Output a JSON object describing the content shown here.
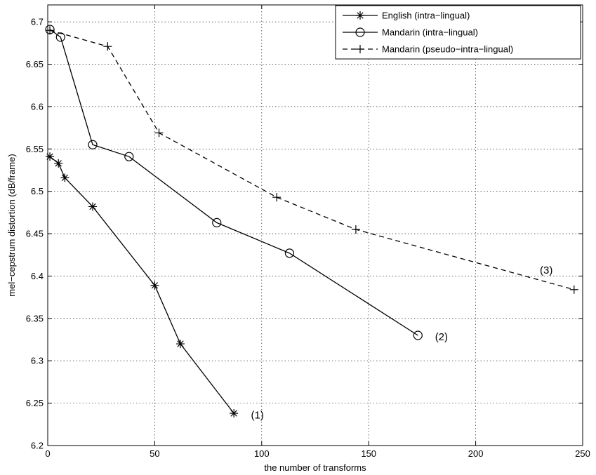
{
  "chart_data": {
    "type": "line",
    "title": "",
    "xlabel": "the number of transforms",
    "ylabel": "mel−cepstrum distortion (dB/frame)",
    "xlim": [
      0,
      250
    ],
    "ylim": [
      6.2,
      6.72
    ],
    "xticks": [
      0,
      50,
      100,
      150,
      200,
      250
    ],
    "yticks": [
      6.2,
      6.25,
      6.3,
      6.35,
      6.4,
      6.45,
      6.5,
      6.55,
      6.6,
      6.65,
      6.7
    ],
    "xtick_labels": [
      "0",
      "50",
      "100",
      "150",
      "200",
      "250"
    ],
    "ytick_labels": [
      "6.2",
      "6.25",
      "6.3",
      "6.35",
      "6.4",
      "6.45",
      "6.5",
      "6.55",
      "6.6",
      "6.65",
      "6.7"
    ],
    "grid": true,
    "legend_position": "top-right",
    "series": [
      {
        "name": "English (intra−lingual)",
        "marker": "asterisk",
        "line": "solid",
        "x": [
          1,
          5,
          8,
          21,
          50,
          62,
          87
        ],
        "y": [
          6.541,
          6.533,
          6.516,
          6.482,
          6.389,
          6.32,
          6.238
        ]
      },
      {
        "name": "Mandarin (intra−lingual)",
        "marker": "circle",
        "line": "solid",
        "x": [
          1,
          6,
          21,
          38,
          79,
          113,
          173
        ],
        "y": [
          6.691,
          6.682,
          6.555,
          6.541,
          6.463,
          6.427,
          6.33
        ]
      },
      {
        "name": "Mandarin (pseudo−intra−lingual)",
        "marker": "plus",
        "line": "dashed",
        "x": [
          1,
          28,
          52,
          107,
          144,
          246
        ],
        "y": [
          6.69,
          6.671,
          6.569,
          6.493,
          6.455,
          6.384
        ]
      }
    ],
    "annotations": [
      {
        "text": "(1)",
        "x": 95,
        "y": 6.232
      },
      {
        "text": "(2)",
        "x": 181,
        "y": 6.324
      },
      {
        "text": "(3)",
        "x": 230,
        "y": 6.403
      }
    ]
  }
}
